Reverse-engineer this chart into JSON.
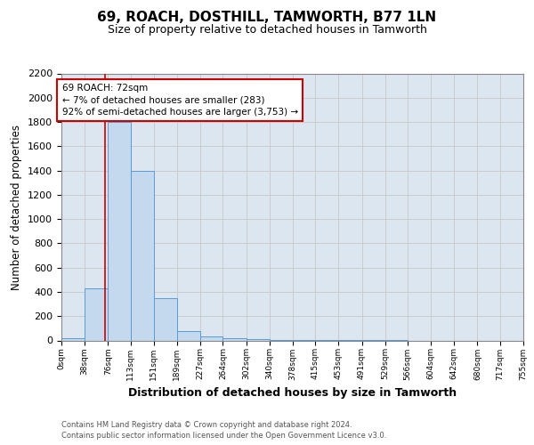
{
  "title": "69, ROACH, DOSTHILL, TAMWORTH, B77 1LN",
  "subtitle": "Size of property relative to detached houses in Tamworth",
  "xlabel": "Distribution of detached houses by size in Tamworth",
  "ylabel": "Number of detached properties",
  "bin_edges": [
    0,
    38,
    76,
    113,
    151,
    189,
    227,
    264,
    302,
    340,
    378,
    415,
    453,
    491,
    529,
    566,
    604,
    642,
    680,
    717,
    755
  ],
  "bar_heights": [
    20,
    430,
    1800,
    1400,
    350,
    75,
    30,
    15,
    8,
    5,
    3,
    2,
    1,
    1,
    1,
    0,
    0,
    0,
    0,
    0
  ],
  "bar_color": "#c5d9ee",
  "bar_edge_color": "#5b9bd5",
  "property_size": 72,
  "red_line_color": "#cc0000",
  "annotation_line1": "69 ROACH: 72sqm",
  "annotation_line2": "← 7% of detached houses are smaller (283)",
  "annotation_line3": "92% of semi-detached houses are larger (3,753) →",
  "annotation_box_edge_color": "#cc0000",
  "ylim_max": 2200,
  "ytick_interval": 200,
  "footer_line1": "Contains HM Land Registry data © Crown copyright and database right 2024.",
  "footer_line2": "Contains public sector information licensed under the Open Government Licence v3.0.",
  "grid_color": "#c8c8c8",
  "background_color": "#dce6f1",
  "title_fontsize": 11,
  "subtitle_fontsize": 9,
  "ylabel_fontsize": 8.5,
  "xlabel_fontsize": 9,
  "ytick_fontsize": 8,
  "xtick_fontsize": 6.5,
  "annotation_fontsize": 7.5,
  "footer_fontsize": 6
}
